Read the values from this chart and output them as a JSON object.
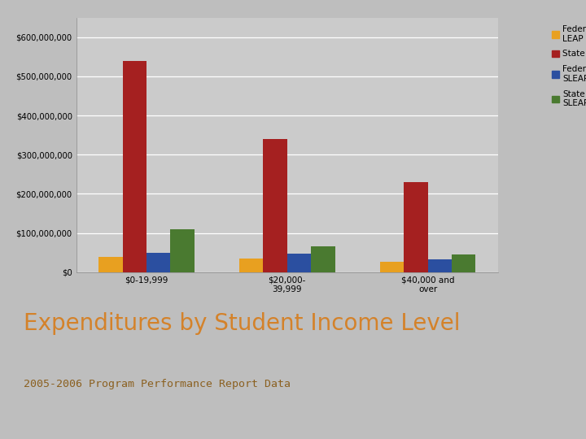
{
  "categories": [
    "$0-19,999",
    "$20,000-\n39,999",
    "$40,000 and\nover"
  ],
  "series": {
    "Federal LEAP": [
      40000000,
      35000000,
      27000000
    ],
    "State LEAP": [
      540000000,
      340000000,
      230000000
    ],
    "Federal SLEAP": [
      50000000,
      47000000,
      32000000
    ],
    "State SLEAP": [
      110000000,
      67000000,
      45000000
    ]
  },
  "colors": {
    "Federal LEAP": "#E8A020",
    "State LEAP": "#A52020",
    "Federal SLEAP": "#2B4FA0",
    "State SLEAP": "#4A7A30"
  },
  "legend_labels": [
    "Federal\nLEAP",
    "State LEAP",
    "Federal\nSLEAP",
    "State\nSLEAP"
  ],
  "legend_keys": [
    "Federal LEAP",
    "State LEAP",
    "Federal SLEAP",
    "State SLEAP"
  ],
  "ylim": [
    0,
    650000000
  ],
  "yticks": [
    0,
    100000000,
    200000000,
    300000000,
    400000000,
    500000000,
    600000000
  ],
  "ytick_labels": [
    "$0",
    "$100,000,000",
    "$200,000,000",
    "$300,000,000",
    "$400,000,000",
    "$500,000,000",
    "$600,000,000"
  ],
  "title": "Expenditures by Student Income Level",
  "subtitle": "2005-2006 Program Performance Report Data",
  "title_color": "#D4822A",
  "subtitle_color": "#8B6020",
  "bg_plot_outer": "#B8B8B8",
  "bg_plot_inner": "#CBCBCB",
  "bg_figure_top": "#BEBEBE",
  "bg_figure_bottom": "#FFFFFF",
  "grid_color": "#FFFFFF"
}
